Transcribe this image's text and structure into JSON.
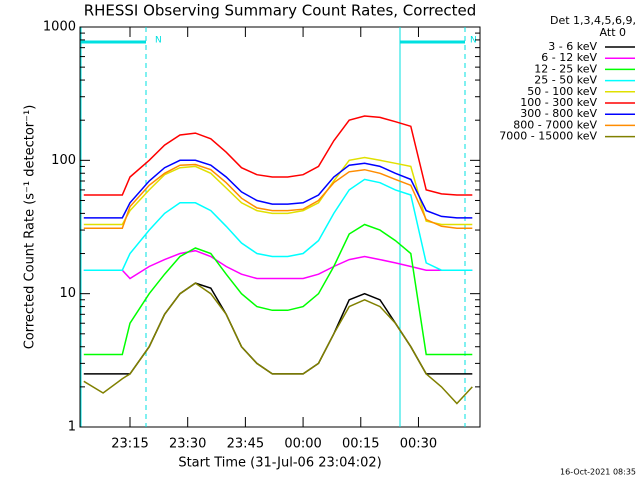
{
  "chart_data": {
    "type": "line",
    "title": "RHESSI Observing Summary Count Rates, Corrected",
    "x_label": "Start Time (31-Jul-06 23:04:02)",
    "y_label": "Corrected Count Rate (s⁻¹ detector⁻¹)",
    "legend_title": [
      "Det 1,3,4,5,6,9,",
      "Att 0"
    ],
    "footer": "16-Oct-2021 08:35",
    "annotations": [
      "N",
      "N"
    ],
    "log_y": true,
    "xlim": [
      2,
      106
    ],
    "xticks": [
      {
        "value": 15,
        "label": "23:15"
      },
      {
        "value": 30,
        "label": "23:30"
      },
      {
        "value": 45,
        "label": "23:45"
      },
      {
        "value": 60,
        "label": "00:00"
      },
      {
        "value": 75,
        "label": "00:15"
      },
      {
        "value": 90,
        "label": "00:30"
      }
    ],
    "ylim": [
      1,
      1000
    ],
    "yticks": [
      1,
      10,
      100,
      1000
    ],
    "x": [
      3,
      8,
      13,
      15,
      20,
      24,
      28,
      32,
      36,
      40,
      44,
      48,
      52,
      56,
      60,
      64,
      68,
      72,
      76,
      80,
      84,
      88,
      92,
      96,
      100,
      104
    ],
    "series": [
      {
        "name": "3 - 6 keV",
        "color": "#000000",
        "values": [
          2.5,
          2.5,
          2.5,
          2.5,
          4,
          7,
          10,
          12,
          11,
          7,
          4,
          3,
          2.5,
          2.5,
          2.5,
          3,
          5,
          9,
          10,
          9,
          6,
          4,
          2.5,
          2.5,
          2.5,
          2.5
        ]
      },
      {
        "name": "6 - 12 keV",
        "color": "#ff00ff",
        "values": [
          15,
          15,
          15,
          13,
          16,
          18,
          20,
          21,
          19,
          16,
          14,
          13,
          13,
          13,
          13,
          14,
          16,
          18,
          19,
          18,
          17,
          16,
          15,
          15,
          15,
          15
        ]
      },
      {
        "name": "12 - 25 keV",
        "color": "#00ff00",
        "values": [
          3.5,
          3.5,
          3.5,
          6,
          10,
          14,
          19,
          22,
          20,
          14,
          10,
          8,
          7.5,
          7.5,
          8,
          10,
          16,
          28,
          33,
          30,
          25,
          20,
          3.5,
          3.5,
          3.5,
          3.5
        ]
      },
      {
        "name": "25 - 50 keV",
        "color": "#00ffff",
        "values": [
          15,
          15,
          15,
          20,
          30,
          40,
          48,
          48,
          42,
          32,
          24,
          20,
          19,
          19,
          20,
          25,
          40,
          60,
          72,
          68,
          60,
          55,
          17,
          15,
          15,
          15
        ]
      },
      {
        "name": "50 - 100 keV",
        "color": "#e0e000",
        "values": [
          33,
          33,
          33,
          42,
          60,
          78,
          88,
          90,
          80,
          62,
          48,
          42,
          40,
          40,
          42,
          48,
          70,
          100,
          105,
          100,
          95,
          90,
          35,
          33,
          33,
          33
        ]
      },
      {
        "name": "100 - 300 keV",
        "color": "#ff0000",
        "values": [
          55,
          55,
          55,
          75,
          100,
          130,
          155,
          160,
          145,
          115,
          88,
          78,
          75,
          75,
          78,
          90,
          140,
          200,
          215,
          210,
          195,
          180,
          60,
          56,
          55,
          55
        ]
      },
      {
        "name": "300 - 800 keV",
        "color": "#0000ff",
        "values": [
          37,
          37,
          37,
          48,
          70,
          88,
          100,
          100,
          92,
          75,
          58,
          50,
          47,
          47,
          48,
          55,
          75,
          92,
          95,
          90,
          80,
          72,
          42,
          38,
          37,
          37
        ]
      },
      {
        "name": "800 - 7000 keV",
        "color": "#ff8c00",
        "values": [
          31,
          31,
          31,
          45,
          65,
          80,
          92,
          93,
          85,
          68,
          52,
          44,
          42,
          42,
          43,
          50,
          68,
          82,
          85,
          80,
          72,
          65,
          36,
          32,
          31,
          31
        ]
      },
      {
        "name": "7000 - 15000 keV",
        "color": "#808000",
        "values": [
          2.2,
          1.8,
          2.3,
          2.5,
          4,
          7,
          10,
          12,
          10,
          7,
          4,
          3,
          2.5,
          2.5,
          2.5,
          3,
          5,
          8,
          9,
          8,
          6,
          4,
          2.5,
          2,
          1.5,
          2
        ]
      }
    ]
  }
}
